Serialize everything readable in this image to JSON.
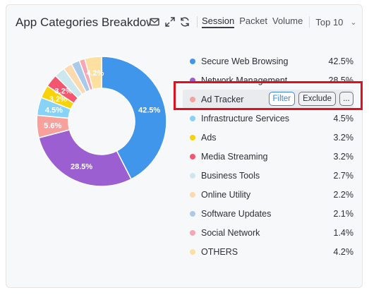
{
  "widget": {
    "title": "App Categories Breakdown",
    "tabs": [
      {
        "label": "Session",
        "active": true
      },
      {
        "label": "Packet",
        "active": false
      },
      {
        "label": "Volume",
        "active": false
      }
    ],
    "top_select": "Top 10",
    "icons": [
      "mail-icon",
      "expand-icon",
      "refresh-icon",
      "chevron-down-icon"
    ]
  },
  "chart_data": {
    "type": "pie",
    "categories": [
      "Secure Web Browsing",
      "Network Management",
      "Ad Tracker",
      "Infrastructure Services",
      "Ads",
      "Media Streaming",
      "Business Tools",
      "Online Utility",
      "Software Updates",
      "Social Network",
      "OTHERS"
    ],
    "values": [
      42.5,
      28.5,
      5.6,
      4.5,
      3.2,
      3.2,
      2.7,
      2.2,
      2.1,
      1.4,
      4.2
    ],
    "colors": [
      "#3f96ea",
      "#9c5fd1",
      "#f8a19c",
      "#86d3f7",
      "#f9d30a",
      "#f3566e",
      "#cde7ee",
      "#fdd9b0",
      "#a9cae8",
      "#f7a6b6",
      "#fde0a0"
    ],
    "slice_labels": [
      "42.5%",
      "28.5%",
      "5.6%",
      "4.5%",
      "3.2%",
      "3.2%",
      "",
      "",
      "",
      "",
      "4.2%"
    ]
  },
  "legend": {
    "items": [
      {
        "name": "Secure Web Browsing",
        "value": "42.5%"
      },
      {
        "name": "Network Management",
        "value": "28.5%"
      },
      {
        "name": "Ad Tracker",
        "value": ""
      },
      {
        "name": "Infrastructure Services",
        "value": "4.5%"
      },
      {
        "name": "Ads",
        "value": "3.2%"
      },
      {
        "name": "Media Streaming",
        "value": "3.2%"
      },
      {
        "name": "Business Tools",
        "value": "2.7%"
      },
      {
        "name": "Online Utility",
        "value": "2.2%"
      },
      {
        "name": "Software Updates",
        "value": "2.1%"
      },
      {
        "name": "Social Network",
        "value": "1.4%"
      },
      {
        "name": "OTHERS",
        "value": "4.2%"
      }
    ],
    "hover_index": 2,
    "hover_actions": {
      "filter": "Filter",
      "exclude": "Exclude",
      "more": "..."
    }
  }
}
